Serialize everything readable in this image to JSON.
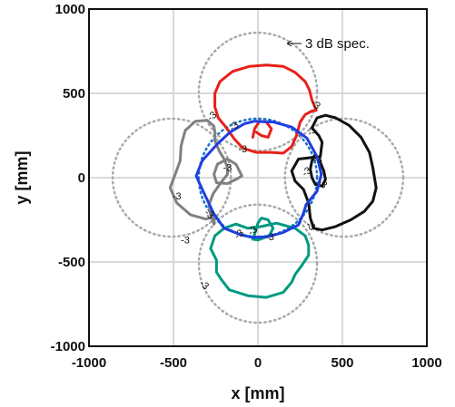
{
  "chart_data": {
    "type": "line",
    "title": "",
    "xlabel": "x [mm]",
    "ylabel": "y [mm]",
    "xlim": [
      -1000,
      1000
    ],
    "ylim": [
      -1000,
      1000
    ],
    "xticks": [
      -1000,
      -500,
      0,
      500,
      1000
    ],
    "yticks": [
      -1000,
      -500,
      0,
      500,
      1000
    ],
    "xtick_labels": [
      "-1000",
      "-500",
      "0",
      "500",
      "1000"
    ],
    "ytick_labels": [
      "-1000",
      "-500",
      "0",
      "500",
      "1000"
    ],
    "grid": true,
    "annotation": {
      "text": "3 dB spec.",
      "arrow": "left"
    },
    "spec_circles": [
      {
        "center": [
          0,
          0
        ],
        "radius": 350,
        "color": "#1a73c8"
      },
      {
        "center": [
          0,
          510
        ],
        "radius": 350,
        "color": "#aaaaaa"
      },
      {
        "center": [
          0,
          -510
        ],
        "radius": 350,
        "color": "#aaaaaa"
      },
      {
        "center": [
          -510,
          0
        ],
        "radius": 350,
        "color": "#aaaaaa"
      },
      {
        "center": [
          510,
          0
        ],
        "radius": 350,
        "color": "#aaaaaa"
      }
    ],
    "contour_label": "-3",
    "series": [
      {
        "color": "#e8201a",
        "closed": false,
        "points": [
          [
            320,
            460
          ],
          [
            305,
            520
          ],
          [
            280,
            570
          ],
          [
            220,
            625
          ],
          [
            150,
            660
          ],
          [
            50,
            668
          ],
          [
            -50,
            660
          ],
          [
            -150,
            630
          ],
          [
            -225,
            570
          ],
          [
            -255,
            500
          ],
          [
            -255,
            420
          ],
          [
            -235,
            355
          ],
          [
            -190,
            300
          ],
          [
            -140,
            230
          ],
          [
            -90,
            175
          ],
          [
            -10,
            150
          ],
          [
            80,
            150
          ],
          [
            150,
            145
          ],
          [
            200,
            185
          ],
          [
            230,
            255
          ],
          [
            250,
            330
          ],
          [
            280,
            375
          ],
          [
            320,
            395
          ],
          [
            345,
            400
          ],
          [
            320,
            460
          ]
        ]
      },
      {
        "color": "#e8201a",
        "closed": false,
        "points": [
          [
            -30,
            240
          ],
          [
            -20,
            290
          ],
          [
            10,
            335
          ],
          [
            50,
            330
          ],
          [
            80,
            290
          ],
          [
            60,
            240
          ],
          [
            20,
            250
          ],
          [
            -10,
            270
          ]
        ]
      },
      {
        "color": "#009980",
        "closed": false,
        "points": [
          [
            -245,
            -490
          ],
          [
            -280,
            -420
          ],
          [
            -255,
            -345
          ],
          [
            -200,
            -300
          ],
          [
            -130,
            -275
          ],
          [
            -60,
            -300
          ],
          [
            20,
            -290
          ],
          [
            110,
            -270
          ],
          [
            220,
            -300
          ],
          [
            280,
            -345
          ],
          [
            300,
            -400
          ],
          [
            300,
            -460
          ],
          [
            260,
            -520
          ],
          [
            220,
            -575
          ],
          [
            200,
            -620
          ],
          [
            150,
            -680
          ],
          [
            50,
            -710
          ],
          [
            -60,
            -700
          ],
          [
            -170,
            -665
          ],
          [
            -220,
            -600
          ],
          [
            -245,
            -560
          ],
          [
            -245,
            -490
          ]
        ]
      },
      {
        "color": "#009980",
        "closed": false,
        "points": [
          [
            -30,
            -365
          ],
          [
            -15,
            -320
          ],
          [
            0,
            -270
          ],
          [
            20,
            -240
          ],
          [
            60,
            -250
          ],
          [
            90,
            -300
          ],
          [
            70,
            -340
          ],
          [
            40,
            -355
          ],
          [
            0,
            -370
          ],
          [
            -30,
            -365
          ]
        ]
      },
      {
        "color": "#808080",
        "closed": false,
        "points": [
          [
            -260,
            -275
          ],
          [
            -260,
            -235
          ],
          [
            -310,
            -245
          ],
          [
            -400,
            -220
          ],
          [
            -480,
            -150
          ],
          [
            -520,
            -60
          ],
          [
            -490,
            20
          ],
          [
            -460,
            100
          ],
          [
            -455,
            190
          ],
          [
            -430,
            280
          ],
          [
            -370,
            335
          ],
          [
            -300,
            340
          ],
          [
            -260,
            305
          ],
          [
            -255,
            270
          ],
          [
            -255,
            220
          ],
          [
            -230,
            160
          ],
          [
            -200,
            110
          ],
          [
            -180,
            60
          ],
          [
            -180,
            20
          ],
          [
            -220,
            -30
          ],
          [
            -265,
            -95
          ],
          [
            -290,
            -160
          ],
          [
            -280,
            -220
          ],
          [
            -260,
            -275
          ]
        ]
      },
      {
        "color": "#808080",
        "closed": false,
        "points": [
          [
            -95,
            10
          ],
          [
            -130,
            80
          ],
          [
            -180,
            110
          ],
          [
            -240,
            80
          ],
          [
            -260,
            20
          ],
          [
            -245,
            -30
          ],
          [
            -180,
            -35
          ],
          [
            -120,
            -5
          ],
          [
            -95,
            10
          ]
        ]
      },
      {
        "color": "#111111",
        "closed": false,
        "points": [
          [
            320,
            295
          ],
          [
            350,
            355
          ],
          [
            400,
            370
          ],
          [
            460,
            355
          ],
          [
            540,
            310
          ],
          [
            610,
            240
          ],
          [
            660,
            150
          ],
          [
            680,
            60
          ],
          [
            700,
            -60
          ],
          [
            680,
            -140
          ],
          [
            630,
            -200
          ],
          [
            550,
            -250
          ],
          [
            460,
            -290
          ],
          [
            380,
            -310
          ],
          [
            330,
            -300
          ],
          [
            310,
            -240
          ],
          [
            300,
            -150
          ],
          [
            270,
            -70
          ],
          [
            220,
            -20
          ],
          [
            200,
            40
          ],
          [
            240,
            110
          ],
          [
            320,
            120
          ],
          [
            360,
            120
          ],
          [
            370,
            130
          ],
          [
            380,
            210
          ],
          [
            360,
            250
          ],
          [
            320,
            295
          ]
        ]
      },
      {
        "color": "#111111",
        "closed": false,
        "points": [
          [
            340,
            140
          ],
          [
            370,
            90
          ],
          [
            390,
            40
          ],
          [
            400,
            -10
          ],
          [
            380,
            -50
          ],
          [
            340,
            -40
          ],
          [
            320,
            0
          ],
          [
            310,
            50
          ],
          [
            320,
            100
          ],
          [
            340,
            140
          ]
        ]
      },
      {
        "color": "#1f3fe0",
        "closed": true,
        "points": [
          [
            -20,
            335
          ],
          [
            90,
            330
          ],
          [
            200,
            300
          ],
          [
            290,
            235
          ],
          [
            350,
            125
          ],
          [
            375,
            20
          ],
          [
            350,
            -80
          ],
          [
            285,
            -160
          ],
          [
            270,
            -210
          ],
          [
            240,
            -280
          ],
          [
            150,
            -325
          ],
          [
            60,
            -350
          ],
          [
            -30,
            -355
          ],
          [
            -100,
            -340
          ],
          [
            -200,
            -300
          ],
          [
            -260,
            -215
          ],
          [
            -325,
            -80
          ],
          [
            -365,
            10
          ],
          [
            -330,
            100
          ],
          [
            -240,
            200
          ],
          [
            -165,
            270
          ],
          [
            -80,
            320
          ],
          [
            -20,
            335
          ]
        ]
      }
    ]
  }
}
